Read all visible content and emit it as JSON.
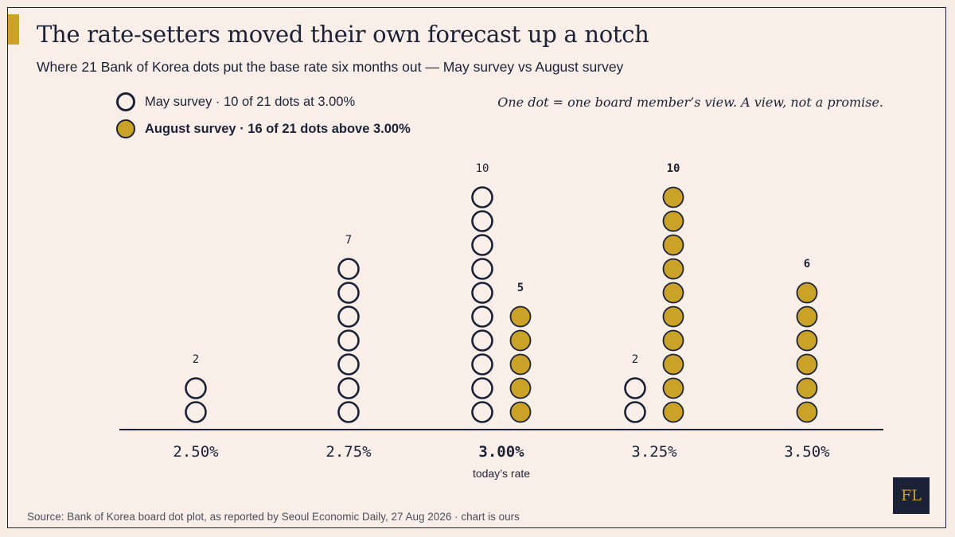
{
  "header": {
    "title": "The rate-setters moved their own forecast up a notch",
    "subtitle": "Where 21 Bank of Korea dots put the base rate six months out — May survey vs August survey"
  },
  "legend": {
    "may_label": "May survey · 10 of 21 dots at 3.00%",
    "aug_label": "August survey · 16 of 21 dots above 3.00%"
  },
  "note": "One dot = one board member’s view. A view, not a promise.",
  "footer": {
    "source": "Source: Bank of Korea board dot plot, as reported by Seoul Economic Daily, 27 Aug 2026 · chart is ours",
    "logo": "FL"
  },
  "colors": {
    "ink": "#1b2238",
    "gold": "#c9a227",
    "background": "#faefe8"
  },
  "chart_data": {
    "type": "dot",
    "categories": [
      "2.50%",
      "2.75%",
      "3.00%",
      "3.25%",
      "3.50%"
    ],
    "series": [
      {
        "name": "May survey",
        "style": "open",
        "values": [
          2,
          7,
          10,
          2,
          0
        ]
      },
      {
        "name": "August survey",
        "style": "filled",
        "values": [
          0,
          0,
          5,
          10,
          6
        ]
      }
    ],
    "highlight_category": "3.00%",
    "highlight_annotation": "today’s rate",
    "total_dots": 21
  }
}
